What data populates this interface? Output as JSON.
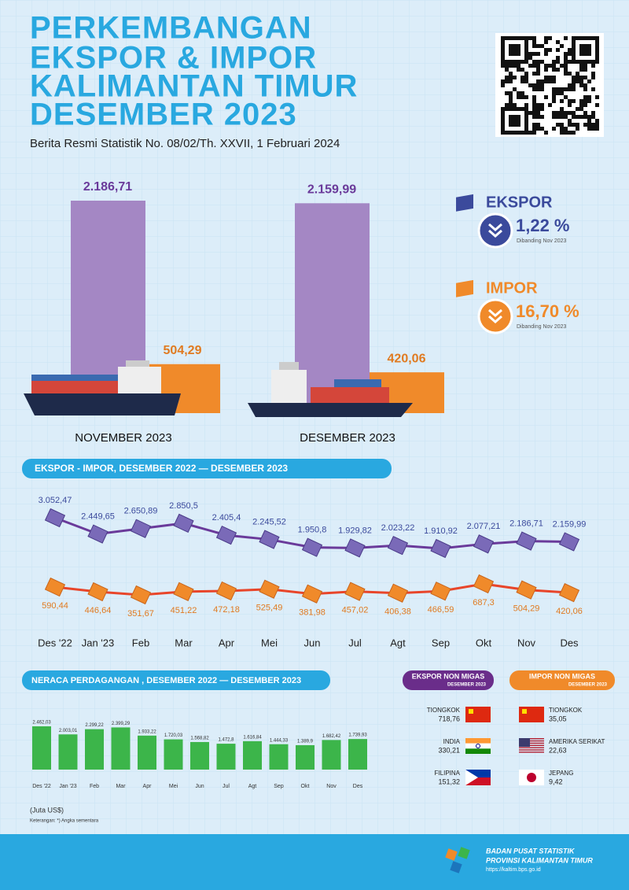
{
  "header": {
    "title": [
      "PERKEMBANGAN",
      "EKSPOR & IMPOR",
      "KALIMANTAN TIMUR",
      "DESEMBER 2023"
    ],
    "subtitle": "Berita Resmi Statistik No. 08/02/Th. XXVII, 1 Februari 2024"
  },
  "indicators": [
    {
      "name": "EKSPOR",
      "change": "1,22 %",
      "note": "Dibanding Nov 2023",
      "color": "#3b4a9c"
    },
    {
      "name": "IMPOR",
      "change": "16,70 %",
      "note": "Dibanding Nov 2023",
      "color": "#f08a2a"
    }
  ],
  "chart_data": [
    {
      "type": "bar",
      "categories": [
        "NOVEMBER 2023",
        "DESEMBER 2023"
      ],
      "series": [
        {
          "color": "#a487c4",
          "values": [
            2186.71,
            2159.99
          ],
          "value_labels": [
            "2.186,71",
            "2.159,99"
          ],
          "label_color": "#6a3a9a"
        },
        {
          "color": "#f08a2a",
          "values": [
            504.29,
            420.06
          ],
          "value_labels": [
            "504,29",
            "420,06"
          ],
          "label_color": "#e07a20"
        }
      ]
    },
    {
      "type": "line",
      "title": "EKSPOR - IMPOR, DESEMBER 2022 — DESEMBER 2023",
      "categories": [
        "Des '22",
        "Jan '23",
        "Feb",
        "Mar",
        "Apr",
        "Mei",
        "Jun",
        "Jul",
        "Agt",
        "Sep",
        "Okt",
        "Nov",
        "Des"
      ],
      "series": [
        {
          "color": "#6a3a9a",
          "values": [
            3052.47,
            2449.65,
            2650.89,
            2850.5,
            2405.4,
            2245.52,
            1950.8,
            1929.82,
            2023.22,
            1910.92,
            2077.21,
            2186.71,
            2159.99
          ],
          "value_labels": [
            "3.052,47",
            "2.449,65",
            "2.650,89",
            "2.850,5",
            "2.405,4",
            "2.245,52",
            "1.950,8",
            "1.929,82",
            "2.023,22",
            "1.910,92",
            "2.077,21",
            "2.186,71",
            "2.159,99"
          ]
        },
        {
          "color": "#e8452a",
          "values": [
            590.44,
            446.64,
            351.67,
            451.22,
            472.18,
            525.49,
            381.98,
            457.02,
            406.38,
            466.59,
            687.3,
            504.29,
            420.06
          ],
          "value_labels": [
            "590,44",
            "446,64",
            "351,67",
            "451,22",
            "472,18",
            "525,49",
            "381,98",
            "457,02",
            "406,38",
            "466,59",
            "687,3",
            "504,29",
            "420,06"
          ]
        }
      ]
    },
    {
      "type": "bar",
      "title": "NERACA PERDAGANGAN , DESEMBER 2022 — DESEMBER 2023",
      "categories": [
        "Des '22",
        "Jan '23",
        "Feb",
        "Mar",
        "Apr",
        "Mei",
        "Jun",
        "Jul",
        "Agt",
        "Sep",
        "Okt",
        "Nov",
        "Des"
      ],
      "color": "#3cb54a",
      "values": [
        2462.03,
        2003.01,
        2299.22,
        2399.29,
        1933.22,
        1720.03,
        1568.82,
        1472.8,
        1616.84,
        1444.33,
        1389.9,
        1682.42,
        1739.93
      ],
      "value_labels": [
        "2.462,03",
        "2.003,01",
        "2.299,22",
        "2.399,29",
        "1.933,22",
        "1.720,03",
        "1.568,82",
        "1.472,8",
        "1.616,84",
        "1.444,33",
        "1.389,9",
        "1.682,42",
        "1.739,93"
      ]
    }
  ],
  "partners": [
    {
      "title": "EKSPOR NON MIGAS",
      "subtitle": "DESEMBER 2023",
      "color": "#6a2d8a",
      "items": [
        {
          "country": "TIONGKOK",
          "value": "718,76"
        },
        {
          "country": "INDIA",
          "value": "330,21"
        },
        {
          "country": "FILIPINA",
          "value": "151,32"
        }
      ]
    },
    {
      "title": "IMPOR NON MIGAS",
      "subtitle": "DESEMBER 2023",
      "color": "#f08a2a",
      "items": [
        {
          "country": "TIONGKOK",
          "value": "35,05"
        },
        {
          "country": "AMERIKA SERIKAT",
          "value": "22,63"
        },
        {
          "country": "JEPANG",
          "value": "9,42"
        }
      ]
    }
  ],
  "notes": [
    "(Juta US$)",
    "Keterangan: *) Angka sementara"
  ],
  "footer": {
    "org": "BADAN PUSAT STATISTIK",
    "region": "PROVINSI KALIMANTAN TIMUR",
    "url": "https://kaltim.bps.go.id"
  }
}
